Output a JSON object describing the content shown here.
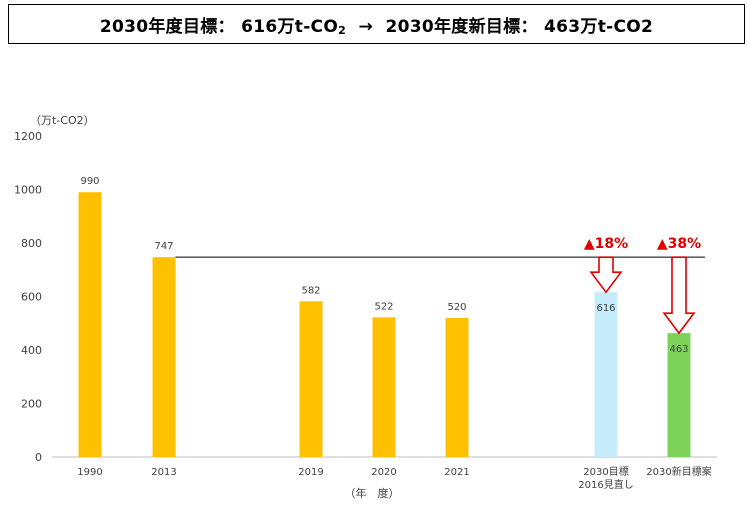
{
  "title": {
    "part1": "2030年度目標：",
    "part2": "616万t-CO",
    "part2_sub": "2",
    "arrow": "→",
    "part3": "2030年度新目標：",
    "part4": "463万t-CO2"
  },
  "chart_data": {
    "type": "bar",
    "ylabel": "（万t-CO2）",
    "xlabel": "（年　度）",
    "ylim": [
      0,
      1200
    ],
    "yticks": [
      0,
      200,
      400,
      600,
      800,
      1000,
      1200
    ],
    "grid": false,
    "categories": [
      {
        "label": [
          "1990"
        ],
        "value": 990,
        "color": "#ffc000"
      },
      {
        "label": [
          "2013"
        ],
        "value": 747,
        "color": "#ffc000"
      },
      {
        "label": [
          "2019"
        ],
        "value": 582,
        "color": "#ffc000"
      },
      {
        "label": [
          "2020"
        ],
        "value": 522,
        "color": "#ffc000"
      },
      {
        "label": [
          "2021"
        ],
        "value": 520,
        "color": "#ffc000"
      },
      {
        "label": [
          "2030目標",
          "2016見直し"
        ],
        "value": 616,
        "color": "#c5ecfb",
        "reduction": "▲18%"
      },
      {
        "label": [
          "2030新目標案"
        ],
        "value": 463,
        "color": "#7dd35a",
        "reduction": "▲38%"
      }
    ],
    "reference_line_value": 747
  }
}
